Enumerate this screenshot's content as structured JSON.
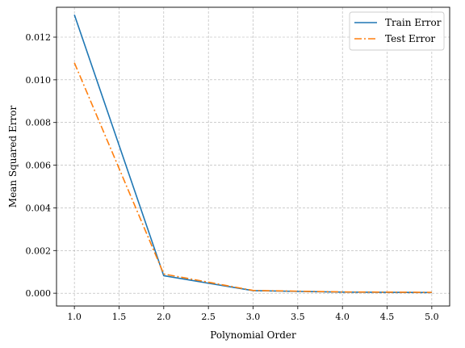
{
  "chart_data": {
    "type": "line",
    "title": "",
    "xlabel": "Polynomial Order",
    "ylabel": "Mean Squared Error",
    "x": [
      1,
      2,
      3,
      4,
      5
    ],
    "xlim": [
      0.8,
      5.2
    ],
    "ylim": [
      -0.0006,
      0.0134
    ],
    "xticks": [
      1.0,
      1.5,
      2.0,
      2.5,
      3.0,
      3.5,
      4.0,
      4.5,
      5.0
    ],
    "xtick_labels": [
      "1.0",
      "1.5",
      "2.0",
      "2.5",
      "3.0",
      "3.5",
      "4.0",
      "4.5",
      "5.0"
    ],
    "yticks": [
      0.0,
      0.002,
      0.004,
      0.006,
      0.008,
      0.01,
      0.012
    ],
    "ytick_labels": [
      "0.000",
      "0.002",
      "0.004",
      "0.006",
      "0.008",
      "0.010",
      "0.012"
    ],
    "grid": true,
    "legend_position": "top-right",
    "series": [
      {
        "name": "Train Error",
        "values": [
          0.01305,
          0.00082,
          0.00012,
          5e-05,
          3e-05
        ],
        "color": "#1f77b4",
        "dash": "solid"
      },
      {
        "name": "Test Error",
        "values": [
          0.0108,
          0.0009,
          0.00013,
          6e-05,
          4e-05
        ],
        "color": "#ff7f0e",
        "dash": "dashdot"
      }
    ]
  }
}
